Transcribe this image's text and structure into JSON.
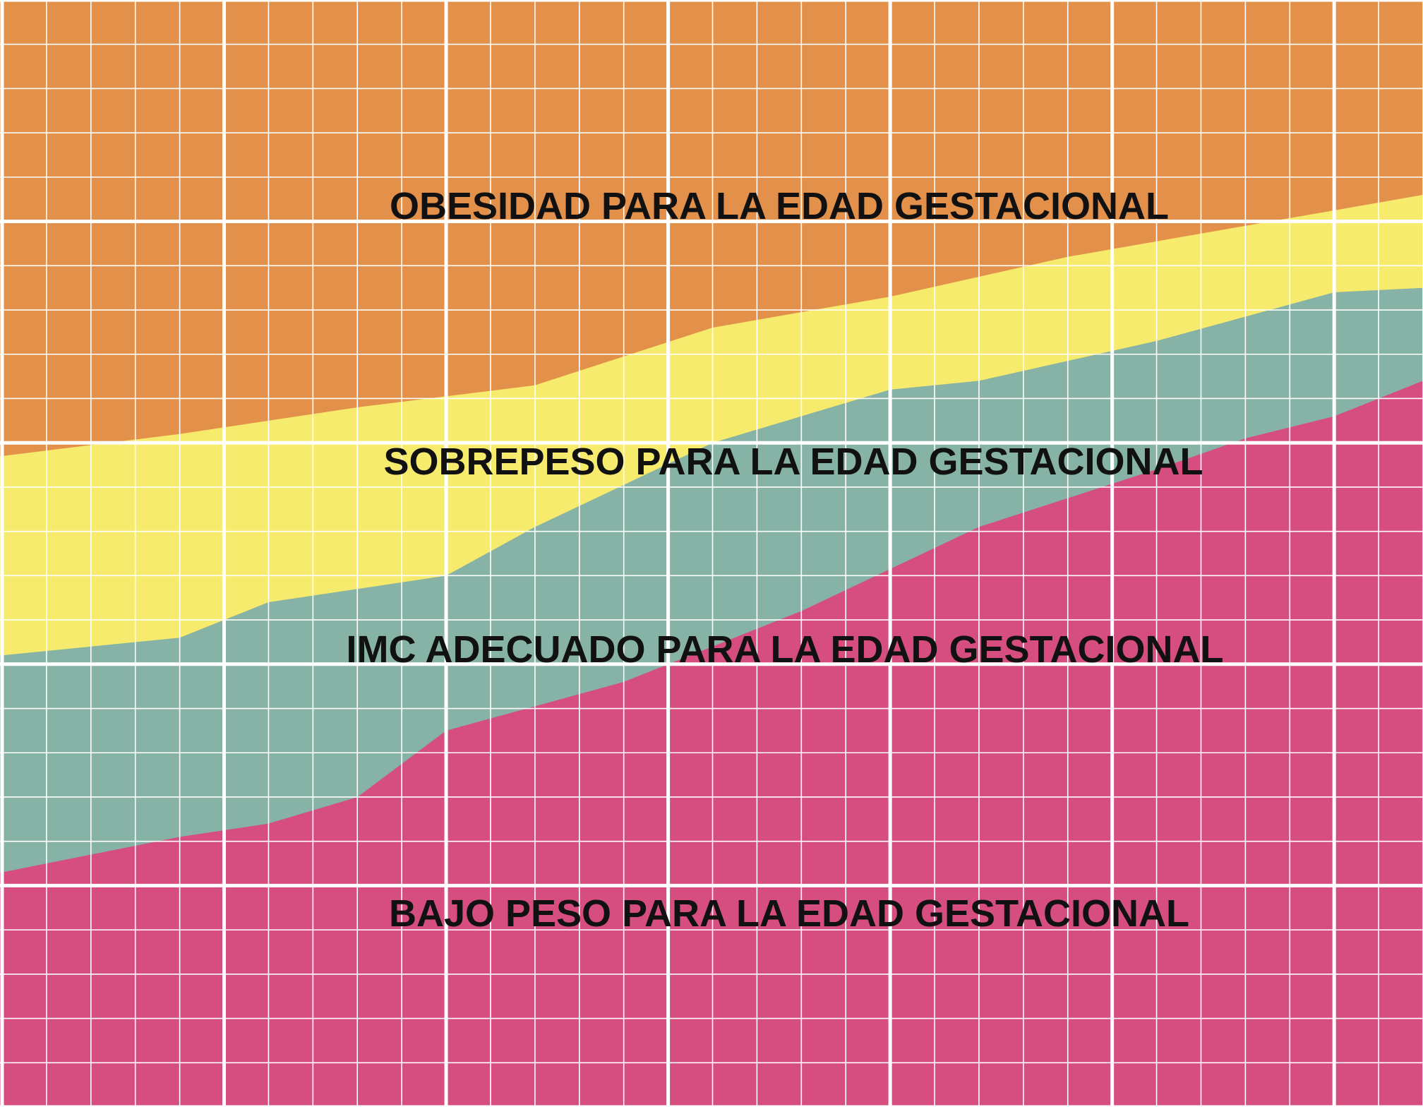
{
  "chart_data": {
    "type": "area",
    "title": "",
    "xlabel": "",
    "ylabel": "",
    "grid": true,
    "legend": "none",
    "zones": [
      {
        "key": "obesidad",
        "label": "OBESIDAD PARA LA EDAD GESTACIONAL",
        "color": "#e3914a"
      },
      {
        "key": "sobrepeso",
        "label": "SOBREPESO PARA LA EDAD GESTACIONAL",
        "color": "#f7eb6d"
      },
      {
        "key": "adecuado",
        "label": "IMC ADECUADO PARA LA EDAD GESTACIONAL",
        "color": "#86b3a6"
      },
      {
        "key": "bajo_peso",
        "label": "BAJO PESO PARA LA EDAD GESTACIONAL",
        "color": "#d64d7f"
      }
    ],
    "boundaries": [
      {
        "between": [
          "obesidad",
          "sobrepeso"
        ],
        "color": "#e3914a",
        "points": [
          [
            0,
            19.4
          ],
          [
            4,
            20.4
          ],
          [
            8,
            21.6
          ],
          [
            12,
            22.6
          ],
          [
            16,
            25.2
          ],
          [
            20,
            26.6
          ],
          [
            24,
            28.4
          ],
          [
            28,
            29.8
          ],
          [
            32,
            31.2
          ]
        ]
      },
      {
        "between": [
          "sobrepeso",
          "adecuado"
        ],
        "color": "#f7eb6d",
        "points": [
          [
            0,
            10.4
          ],
          [
            4,
            11.2
          ],
          [
            6,
            12.8
          ],
          [
            8,
            13.4
          ],
          [
            10,
            14.0
          ],
          [
            12,
            16.2
          ],
          [
            16,
            20.0
          ],
          [
            20,
            22.4
          ],
          [
            22,
            22.8
          ],
          [
            26,
            24.6
          ],
          [
            30,
            26.8
          ],
          [
            32,
            27.0
          ]
        ]
      },
      {
        "between": [
          "adecuado",
          "bajo_peso"
        ],
        "color": "#86b3a6",
        "points": [
          [
            0,
            0.6
          ],
          [
            4,
            2.2
          ],
          [
            6,
            2.8
          ],
          [
            8,
            4.0
          ],
          [
            10,
            7.0
          ],
          [
            14,
            9.2
          ],
          [
            18,
            12.4
          ],
          [
            22,
            16.2
          ],
          [
            26,
            18.8
          ],
          [
            28,
            20.2
          ],
          [
            30,
            21.2
          ],
          [
            32,
            22.8
          ]
        ]
      }
    ],
    "xlim": [
      0,
      32
    ],
    "ylim": [
      -10,
      40
    ],
    "grid_minor_x": 1,
    "grid_major_x": 5,
    "grid_minor_y": 2,
    "grid_major_y": 10
  }
}
